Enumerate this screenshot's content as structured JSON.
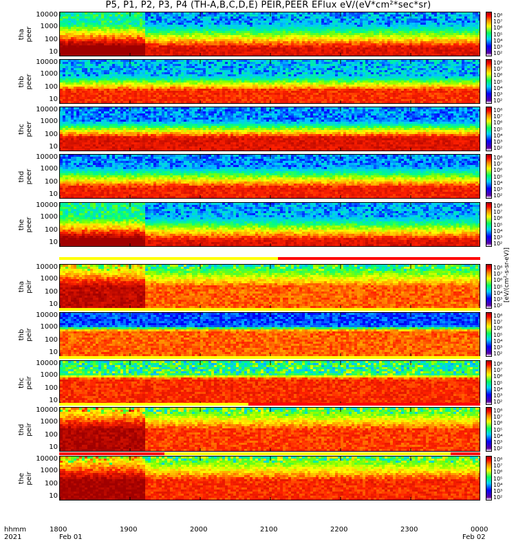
{
  "title": "P5, P1, P2, P3, P4 (TH-A,B,C,D,E) PEIR,PEER EFlux eV/(eV*cm²*sec*sr)",
  "colorbar_unit": "[eV/(cm²-s-sr-eV)]",
  "x_axis": {
    "row_label_1": "hhmm",
    "row_label_2": "2021",
    "ticks": [
      "1800",
      "1900",
      "2000",
      "2100",
      "2200",
      "2300",
      "0000"
    ],
    "date_labels": [
      "Feb 01",
      "Feb 02"
    ]
  },
  "chart_data": {
    "type": "heatmap",
    "title": "P5, P1, P2, P3, P4 (TH-A,B,C,D,E) PEIR,PEER EFlux eV/(eV*cm²*sec*sr)",
    "x_range_hhmm": [
      "1800",
      "0000"
    ],
    "x_ticks": [
      "1800",
      "1900",
      "2000",
      "2100",
      "2200",
      "2300",
      "0000"
    ],
    "y_scale": "log",
    "y_ticks": [
      "10",
      "100",
      "1000",
      "10000"
    ],
    "color_scale": "log",
    "panels": [
      {
        "probe": "tha",
        "product": "peer",
        "ylabel": "tha\npeer",
        "colorbar_ticks": [
          "10⁸",
          "10⁷",
          "10⁶",
          "10⁵",
          "10⁴",
          "10³",
          "10²"
        ]
      },
      {
        "probe": "thb",
        "product": "peer",
        "ylabel": "thb\npeer",
        "colorbar_ticks": [
          "10⁸",
          "10⁷",
          "10⁶",
          "10⁵",
          "10⁴",
          "10³",
          "10²"
        ]
      },
      {
        "probe": "thc",
        "product": "peer",
        "ylabel": "thc\npeer",
        "colorbar_ticks": [
          "10⁸",
          "10⁷",
          "10⁶",
          "10⁵",
          "10⁴",
          "10³",
          "10²"
        ]
      },
      {
        "probe": "thd",
        "product": "peer",
        "ylabel": "thd\npeer",
        "colorbar_ticks": [
          "10⁸",
          "10⁷",
          "10⁶",
          "10⁵",
          "10⁴",
          "10³",
          "10²"
        ]
      },
      {
        "probe": "the",
        "product": "peer",
        "ylabel": "the\npeer",
        "colorbar_ticks": [
          "10⁸",
          "10⁷",
          "10⁶",
          "10⁵",
          "10⁴",
          "10³",
          "10²"
        ]
      },
      {
        "probe": "tha",
        "product": "peir",
        "ylabel": "tha\npeir",
        "colorbar_ticks": [
          "10⁸",
          "10⁷",
          "10⁶",
          "10⁵",
          "10⁴",
          "10³",
          "10²"
        ]
      },
      {
        "probe": "thb",
        "product": "peir",
        "ylabel": "thb\npeir",
        "colorbar_ticks": [
          "10⁸",
          "10⁷",
          "10⁶",
          "10⁵",
          "10⁴",
          "10³",
          "10²"
        ]
      },
      {
        "probe": "thc",
        "product": "peir",
        "ylabel": "thc\npeir",
        "colorbar_ticks": [
          "10⁸",
          "10⁷",
          "10⁶",
          "10⁵",
          "10⁴",
          "10³",
          "10²"
        ]
      },
      {
        "probe": "thd",
        "product": "peir",
        "ylabel": "thd\npeir",
        "colorbar_ticks": [
          "10⁸",
          "10⁷",
          "10⁶",
          "10⁵",
          "10⁴",
          "10³",
          "10²"
        ]
      },
      {
        "probe": "the",
        "product": "peir",
        "ylabel": "the\npeir",
        "colorbar_ticks": [
          "10⁸",
          "10⁷",
          "10⁶",
          "10⁵",
          "10⁴",
          "10³",
          "10²"
        ]
      }
    ]
  },
  "colors": {
    "low": "#0000ff",
    "mid": "#00ff60",
    "high": "#ffff00",
    "peak": "#ff0000",
    "max": "#a00000",
    "mode_bar_red": "#ff0000",
    "mode_bar_yellow": "#ffff00"
  }
}
